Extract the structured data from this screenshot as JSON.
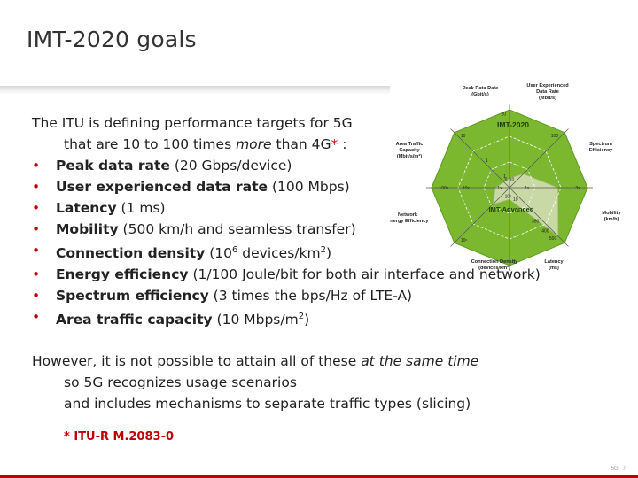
{
  "slide": {
    "title": "IMT-2020 goals",
    "intro_line1": "The ITU is defining performance targets for 5G",
    "intro_line2_pre": "that are 10 to 100 times ",
    "intro_line2_em": "more",
    "intro_line2_post": " than 4G",
    "intro_star": "*",
    "intro_colon": " :",
    "bullet_glyph": "•",
    "goals": [
      {
        "label": "Peak data rate",
        "value": " (20 Gbps/device)"
      },
      {
        "label": "User experienced data rate",
        "value": " (100 Mbps)"
      },
      {
        "label": "Latency",
        "value": " (1 ms)"
      },
      {
        "label": "Mobility",
        "value": " (500 km/h and seamless transfer)"
      },
      {
        "label": "Connection density",
        "value_pre": " (10",
        "value_sup": "6",
        "value_post": " devices/km",
        "value_sup2": "2",
        "value_end": ")"
      },
      {
        "label": "Energy efficiency",
        "value": " (1/100 Joule/bit for both air interface and network)"
      },
      {
        "label": "Spectrum efficiency",
        "value": " (3 times the bps/Hz of LTE-A)"
      },
      {
        "label": "Area traffic capacity",
        "value_pre": " (10 Mbps/m",
        "value_sup": "2",
        "value_end": ")"
      }
    ],
    "para2_pre": "However, it is not possible to attain all of these ",
    "para2_em": "at the same time",
    "para2_line2": "so 5G recognizes usage scenarios",
    "para2_line3": "and includes mechanisms to separate traffic types (slicing)",
    "footnote": "* ITU-R M.2083-0",
    "footer_left": "5G",
    "footer_page": "7"
  },
  "diagram": {
    "colors": {
      "outer": "#7cb82f",
      "inner": "#c9d9a6",
      "grid": "#ffffff",
      "text": "#222222",
      "accent": "#c00000"
    },
    "outer_label": "IMT-2020",
    "inner_label": "IMT-Advanced",
    "axes": [
      {
        "name_lines": [
          "Peak Data Rate",
          "(Gbit/s)"
        ],
        "ticks": [
          "20",
          "1"
        ]
      },
      {
        "name_lines": [
          "User Experienced",
          "Data Rate",
          "(Mbit/s)"
        ],
        "ticks": [
          "100",
          "10"
        ]
      },
      {
        "name_lines": [
          "Spectrum",
          "Efficiency"
        ],
        "ticks": [
          "3x",
          "1x"
        ]
      },
      {
        "name_lines": [
          "Mobility",
          "(km/h)"
        ],
        "ticks": [
          "500",
          "400",
          "350"
        ]
      },
      {
        "name_lines": [
          "Latency",
          "(ms)"
        ],
        "ticks": [
          "1",
          "10"
        ]
      },
      {
        "name_lines": [
          "Connection Density",
          "(devices/km²)"
        ],
        "ticks": [
          "10⁶",
          "10⁵"
        ]
      },
      {
        "name_lines": [
          "Network",
          "Energy Efficiency"
        ],
        "ticks": [
          "100x",
          "10x",
          "1x"
        ]
      },
      {
        "name_lines": [
          "Area Traffic",
          "Capacity",
          "(Mbit/s/m²)"
        ],
        "ticks": [
          "10",
          "1",
          "0.1"
        ]
      }
    ]
  }
}
